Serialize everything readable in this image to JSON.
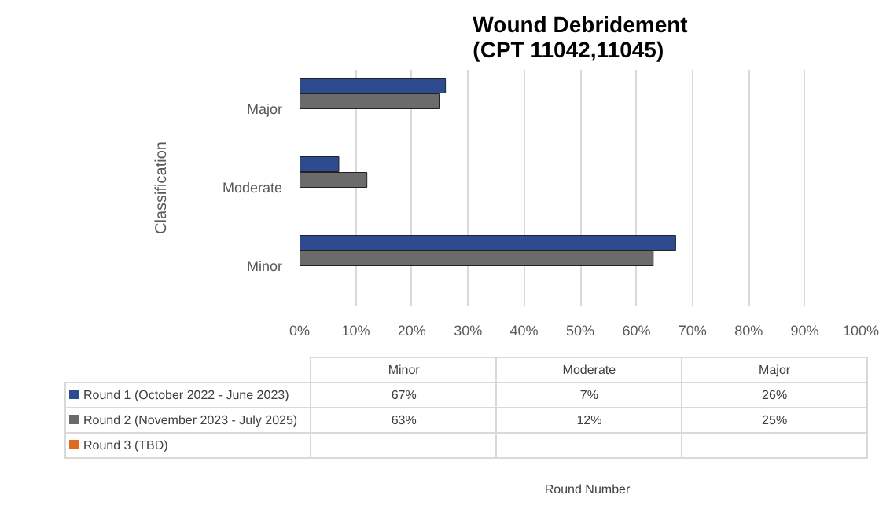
{
  "chart_data": {
    "type": "bar",
    "orientation": "horizontal",
    "title": "Wound Debridement\n(CPT 11042,11045)",
    "annotations": [
      "Round Number"
    ],
    "ylabel": "Classification",
    "categories": [
      "Major",
      "Moderate",
      "Minor"
    ],
    "series": [
      {
        "name": "Round 1 (October 2022 - June 2023)",
        "color": "#2f4b8f",
        "values": [
          26,
          7,
          67
        ]
      },
      {
        "name": "Round 2 (November 2023 - July 2025)",
        "color": "#6b6b6b",
        "values": [
          25,
          12,
          63
        ]
      },
      {
        "name": "Round 3 (TBD)",
        "color": "#e06a1b",
        "values": [
          null,
          null,
          null
        ]
      }
    ],
    "xlim": [
      0,
      100
    ],
    "xticks": [
      {
        "value": 0,
        "label": "0%"
      },
      {
        "value": 10,
        "label": "10%"
      },
      {
        "value": 20,
        "label": "20%"
      },
      {
        "value": 30,
        "label": "30%"
      },
      {
        "value": 40,
        "label": "40%"
      },
      {
        "value": 50,
        "label": "50%"
      },
      {
        "value": 60,
        "label": "60%"
      },
      {
        "value": 70,
        "label": "70%"
      },
      {
        "value": 80,
        "label": "80%"
      },
      {
        "value": 90,
        "label": "90%"
      },
      {
        "value": 100,
        "label": "100%"
      }
    ],
    "value_labels": [
      [
        "26%",
        "7%",
        "67%"
      ],
      [
        "25%",
        "12%",
        "63%"
      ],
      [
        null,
        null,
        null
      ]
    ],
    "grid": "x",
    "legend": "bottom"
  }
}
